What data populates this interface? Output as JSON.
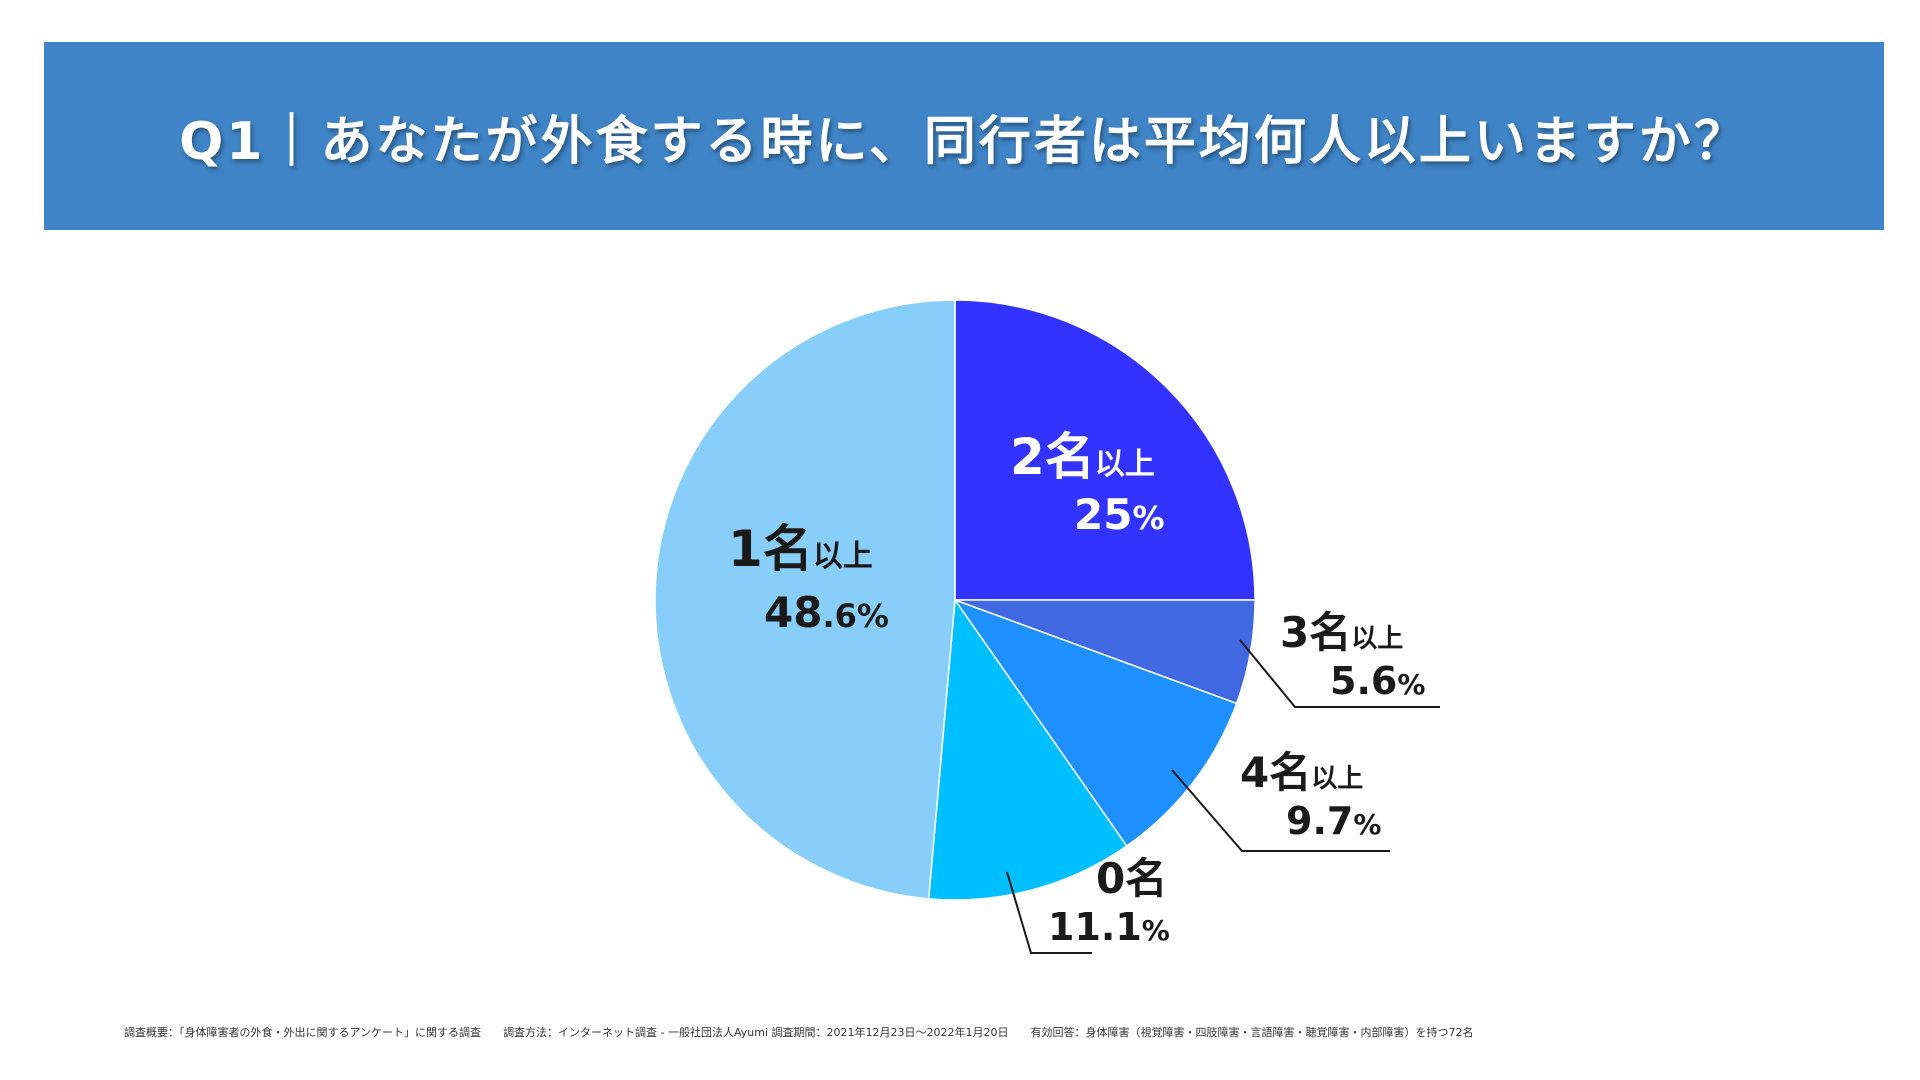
{
  "banner": {
    "title": "Q1｜あなたが外食する時に、同行者は平均何人以上いますか？",
    "color": "#3f84c6"
  },
  "chart_data": {
    "type": "pie",
    "slices": [
      {
        "key": "2plus",
        "name": "2名以上",
        "num": "2",
        "suffix": "以上",
        "value": 25,
        "pct_int": "25",
        "pct_dec": "",
        "color": "#3333ff",
        "label_color": "#ffffff"
      },
      {
        "key": "3plus",
        "name": "3名以上",
        "num": "3",
        "suffix": "以上",
        "value": 5.6,
        "pct_int": "5",
        "pct_dec": ".6",
        "color": "#4169e1",
        "label_color": "#1a1a1a"
      },
      {
        "key": "4plus",
        "name": "4名以上",
        "num": "4",
        "suffix": "以上",
        "value": 9.7,
        "pct_int": "9",
        "pct_dec": ".7",
        "color": "#1e90ff",
        "label_color": "#1a1a1a"
      },
      {
        "key": "0",
        "name": "0名",
        "num": "0",
        "suffix": "",
        "value": 11.1,
        "pct_int": "11",
        "pct_dec": ".1",
        "color": "#00bfff",
        "label_color": "#1a1a1a"
      },
      {
        "key": "1plus",
        "name": "1名以上",
        "num": "1",
        "suffix": "以上",
        "value": 48.6,
        "pct_int": "48",
        "pct_dec": ".6",
        "color": "#87cefa",
        "label_color": "#1a1a1a"
      }
    ],
    "unit_name": "名",
    "percent_sign": "%"
  },
  "footnote": {
    "overview": "調査概要：「身体障害者の外食・外出に関するアンケート」に関する調査",
    "method": "調査方法：インターネット調査 - 一般社団法人Ayumi 調査期間：2021年12月23日〜2022年1月20日",
    "valid": "有効回答：身体障害（視覚障害・四肢障害・言語障害・聴覚障害・内部障害）を持つ72名"
  }
}
